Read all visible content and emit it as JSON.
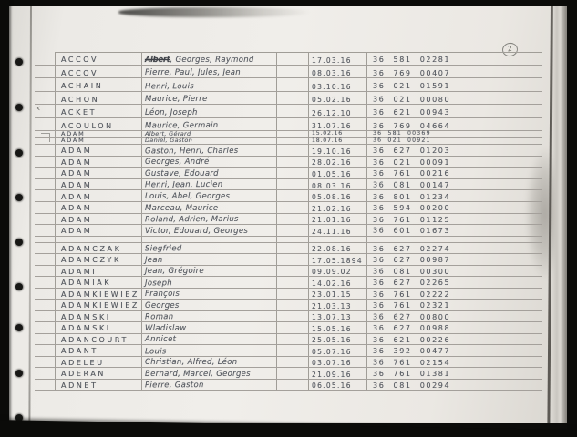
{
  "document": {
    "page_mark": "2",
    "margin_check": "‹"
  },
  "ledger": {
    "rows": [
      {
        "kind": "a",
        "surname": "ACCOV",
        "given_struck": "Albert",
        "given": ", Georges, Raymond",
        "date": "17.03.16",
        "num": "36 581 02281"
      },
      {
        "kind": "a",
        "surname": "ACCOV",
        "given": "Pierre, Paul, Jules, Jean",
        "date": "08.03.16",
        "num": "36 769 00407"
      },
      {
        "kind": "a",
        "surname": "ACHAIN",
        "given": "Henri, Louis",
        "date": "03.10.16",
        "num": "36 021 01591"
      },
      {
        "kind": "a",
        "surname": "ACHON",
        "given": "Maurice, Pierre",
        "date": "05.02.16",
        "num": "36 021 00080"
      },
      {
        "kind": "a",
        "surname": "ACKET",
        "given": "Léon, Joseph",
        "date": "26.12.10",
        "num": "36 621 00943"
      },
      {
        "kind": "a",
        "surname": "ACOULON",
        "given": "Maurice, Germain",
        "date": "31.07.16",
        "num": "36 769 04664"
      },
      {
        "kind": "s",
        "surname": "ADAM",
        "given": "Albert, Gérard",
        "date": "15.02.16",
        "num": "36 581 00369"
      },
      {
        "kind": "s",
        "surname": "ADAM",
        "given": "Daniel, Gaston",
        "date": "18.07.16",
        "num": "36 021 00921"
      },
      {
        "kind": "b",
        "surname": "ADAM",
        "given": "Gaston, Henri, Charles",
        "date": "19.10.16",
        "num": "36 627 01203"
      },
      {
        "kind": "b",
        "surname": "ADAM",
        "given": "Georges, André",
        "date": "28.02.16",
        "num": "36 021 00091"
      },
      {
        "kind": "b",
        "surname": "ADAM",
        "given": "Gustave, Edouard",
        "date": "01.05.16",
        "num": "36 761 00216"
      },
      {
        "kind": "b",
        "surname": "ADAM",
        "given": "Henri, Jean, Lucien",
        "date": "08.03.16",
        "num": "36 081 00147"
      },
      {
        "kind": "b",
        "surname": "ADAM",
        "given": "Louis, Abel, Georges",
        "date": "05.08.16",
        "num": "36 801 01234"
      },
      {
        "kind": "b",
        "surname": "ADAM",
        "given": "Marceau, Maurice",
        "date": "21.02.16",
        "num": "36 594 00200"
      },
      {
        "kind": "b",
        "surname": "ADAM",
        "given": "Roland, Adrien, Marius",
        "date": "21.01.16",
        "num": "36 761 01125"
      },
      {
        "kind": "b",
        "surname": "ADAM",
        "given": "Victor, Edouard, Georges",
        "date": "24.11.16",
        "num": "36 601 01673"
      },
      {
        "kind": "blank"
      },
      {
        "kind": "c",
        "surname": "ADAMCZAK",
        "given": "Siegfried",
        "date": "22.08.16",
        "num": "36 627 02274"
      },
      {
        "kind": "c",
        "surname": "ADAMCZYK",
        "given": "Jean",
        "date": "17.05.1894",
        "num": "36 627 00987"
      },
      {
        "kind": "c",
        "surname": "ADAMI",
        "given": "Jean, Grégoire",
        "date": "09.09.02",
        "num": "36 081 00300"
      },
      {
        "kind": "c",
        "surname": "ADAMIAK",
        "given": "Joseph",
        "date": "14.02.16",
        "num": "36 627 02265"
      },
      {
        "kind": "c",
        "surname": "ADAMKIEWIEZ",
        "given": "François",
        "date": "23.01.15",
        "num": "36 761 02222"
      },
      {
        "kind": "c",
        "surname": "ADAMKIEWIEZ",
        "given": "Georges",
        "date": "21.03.13",
        "num": "36 761 02321"
      },
      {
        "kind": "c",
        "surname": "ADAMSKI",
        "given": "Roman",
        "date": "13.07.13",
        "num": "36 627 00800"
      },
      {
        "kind": "c",
        "surname": "ADAMSKI",
        "given": "Wladislaw",
        "date": "15.05.16",
        "num": "36 627 00988"
      },
      {
        "kind": "c",
        "surname": "ADANCOURT",
        "given": "Annicet",
        "date": "25.05.16",
        "num": "36 621 00226"
      },
      {
        "kind": "c",
        "surname": "ADANT",
        "given": "Louis",
        "date": "05.07.16",
        "num": "36 392 00477"
      },
      {
        "kind": "c",
        "surname": "ADELEU",
        "given": "Christian, Alfred, Léon",
        "date": "03.07.16",
        "num": "36 761 02154"
      },
      {
        "kind": "c",
        "surname": "ADERAN",
        "given": "Bernard, Marcel, Georges",
        "date": "21.09.16",
        "num": "36 761 01381"
      },
      {
        "kind": "c",
        "surname": "ADNET",
        "given": "Pierre, Gaston",
        "date": "06.05.16",
        "num": "36 081 00294"
      }
    ]
  }
}
